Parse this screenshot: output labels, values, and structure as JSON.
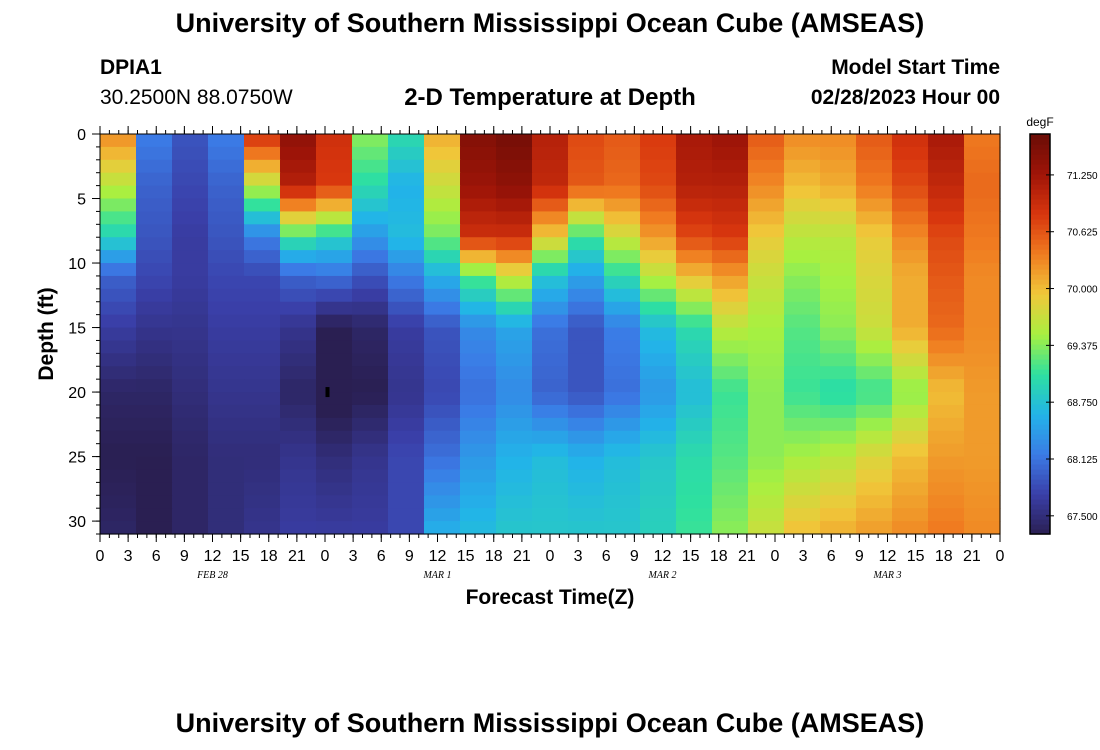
{
  "page": {
    "title_top": "University of Southern Mississippi Ocean Cube (AMSEAS)",
    "title_bottom": "University of Southern Mississippi Ocean Cube (AMSEAS)",
    "station_name": "DPIA1",
    "station_coords": "30.2500N  88.0750W",
    "subtitle": "2-D Temperature at Depth",
    "model_start_label": "Model Start Time",
    "model_start_value": "02/28/2023 Hour 00"
  },
  "chart_data": {
    "type": "heatmap",
    "title": "2-D Temperature at Depth",
    "xlabel": "Forecast Time(Z)",
    "ylabel": "Depth (ft)",
    "x_unit": "hours from model start",
    "xlim": [
      0,
      96
    ],
    "ylim": [
      0,
      31
    ],
    "y_inverted": true,
    "x_ticks": [
      0,
      3,
      6,
      9,
      12,
      15,
      18,
      21,
      24,
      27,
      30,
      33,
      36,
      39,
      42,
      45,
      48,
      51,
      54,
      57,
      60,
      63,
      66,
      69,
      72,
      75,
      78,
      81,
      84,
      87,
      90,
      93,
      96
    ],
    "x_tick_labels": [
      "0",
      "3",
      "6",
      "9",
      "12",
      "15",
      "18",
      "21",
      "0",
      "3",
      "6",
      "9",
      "12",
      "15",
      "18",
      "21",
      "0",
      "3",
      "6",
      "9",
      "12",
      "15",
      "18",
      "21",
      "0",
      "3",
      "6",
      "9",
      "12",
      "15",
      "18",
      "21",
      "0"
    ],
    "y_ticks": [
      0,
      5,
      10,
      15,
      20,
      25,
      30
    ],
    "y_tick_labels": [
      "0",
      "5",
      "10",
      "15",
      "20",
      "25",
      "30"
    ],
    "date_labels": [
      {
        "hour": 12,
        "label": "FEB 28"
      },
      {
        "hour": 36,
        "label": "MAR 1"
      },
      {
        "hour": 60,
        "label": "MAR 2"
      },
      {
        "hour": 84,
        "label": "MAR 3"
      }
    ],
    "colorbar": {
      "unit": "degF",
      "min": 67.3,
      "max": 71.7,
      "ticks": [
        67.5,
        68.125,
        68.75,
        69.375,
        70.0,
        70.625,
        71.25
      ],
      "tick_labels": [
        "67.500",
        "68.125",
        "68.750",
        "69.375",
        "70.000",
        "70.625",
        "71.250"
      ],
      "colors": [
        "#2a1f52",
        "#3a3fa8",
        "#3b7be6",
        "#22b4e8",
        "#2ee0a0",
        "#a8f040",
        "#f0c83a",
        "#f07c20",
        "#d8360e",
        "#a01508",
        "#6a0c06"
      ]
    },
    "grid": false,
    "cols": 25,
    "rows": 31,
    "depth_rows": [
      0,
      1,
      2,
      3,
      4,
      5,
      6,
      7,
      8,
      9,
      10,
      11,
      12,
      13,
      14,
      15,
      16,
      17,
      18,
      19,
      20,
      21,
      22,
      23,
      24,
      25,
      26,
      27,
      28,
      29,
      30
    ],
    "anchor_hours": [
      0,
      4,
      8,
      12,
      16,
      20,
      24,
      28,
      32,
      36,
      40,
      44,
      48,
      52,
      56,
      60,
      64,
      68,
      72,
      76,
      80,
      84,
      88,
      92,
      96
    ],
    "anchor_depths": [
      0,
      4,
      8,
      11,
      15,
      20,
      25,
      31
    ],
    "anchor_values": [
      [
        70.3,
        68.2,
        67.9,
        68.2,
        70.9,
        71.4,
        70.9,
        69.4,
        69.0,
        70.1,
        71.5,
        71.6,
        71.1,
        70.7,
        70.6,
        70.8,
        71.2,
        71.3,
        70.6,
        70.3,
        70.3,
        70.6,
        70.9,
        71.2,
        70.4
      ],
      [
        69.6,
        68.0,
        67.8,
        68.0,
        69.6,
        71.1,
        70.8,
        69.0,
        68.6,
        69.7,
        71.3,
        71.4,
        71.0,
        70.6,
        70.5,
        70.7,
        71.1,
        71.1,
        70.3,
        70.0,
        70.1,
        70.4,
        70.7,
        71.0,
        70.5
      ],
      [
        68.9,
        67.9,
        67.7,
        67.9,
        68.2,
        69.1,
        68.9,
        68.4,
        68.7,
        69.3,
        70.9,
        70.9,
        69.9,
        69.1,
        69.7,
        70.2,
        70.7,
        70.8,
        69.9,
        69.6,
        69.6,
        69.9,
        70.3,
        70.7,
        70.4
      ],
      [
        68.0,
        67.8,
        67.7,
        67.8,
        67.8,
        68.0,
        68.1,
        67.9,
        68.2,
        68.6,
        69.2,
        69.7,
        68.8,
        68.5,
        69.0,
        69.6,
        70.0,
        70.2,
        69.7,
        69.4,
        69.5,
        69.8,
        70.1,
        70.6,
        70.3
      ],
      [
        67.7,
        67.6,
        67.6,
        67.7,
        67.7,
        67.6,
        67.3,
        67.4,
        67.7,
        67.9,
        68.3,
        68.5,
        68.1,
        67.9,
        68.2,
        68.7,
        69.0,
        69.6,
        69.5,
        69.2,
        69.4,
        69.7,
        70.1,
        70.5,
        70.3
      ],
      [
        67.4,
        67.4,
        67.5,
        67.6,
        67.6,
        67.4,
        67.2,
        67.3,
        67.6,
        67.8,
        68.1,
        68.3,
        68.0,
        67.9,
        68.1,
        68.4,
        68.7,
        69.1,
        69.4,
        69.1,
        69.0,
        69.1,
        69.4,
        70.0,
        70.2
      ],
      [
        67.3,
        67.3,
        67.4,
        67.5,
        67.5,
        67.6,
        67.5,
        67.6,
        67.8,
        68.1,
        68.4,
        68.6,
        68.7,
        68.6,
        68.7,
        68.8,
        69.0,
        69.2,
        69.4,
        69.5,
        69.6,
        69.8,
        70.0,
        70.2,
        70.2
      ],
      [
        67.4,
        67.3,
        67.4,
        67.5,
        67.6,
        67.7,
        67.7,
        67.7,
        67.8,
        68.6,
        68.7,
        68.8,
        68.8,
        68.8,
        68.8,
        68.9,
        69.1,
        69.4,
        69.7,
        70.0,
        70.1,
        70.2,
        70.3,
        70.4,
        70.3
      ]
    ],
    "marker": {
      "hour": 24,
      "depth": 20
    }
  }
}
